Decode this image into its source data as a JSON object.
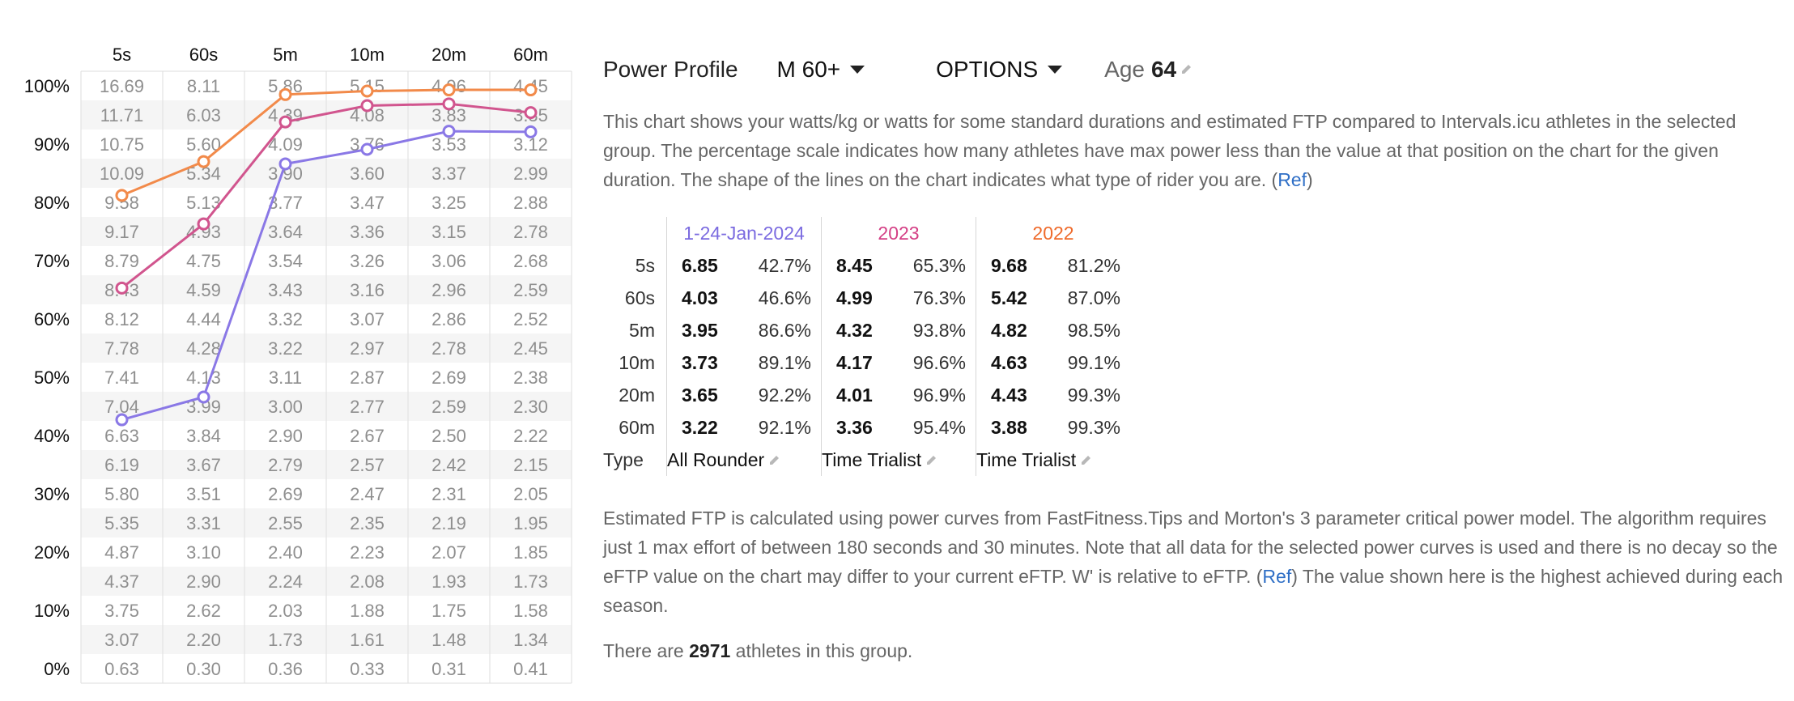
{
  "power_chart": {
    "columns": [
      "5s",
      "60s",
      "5m",
      "10m",
      "20m",
      "60m"
    ],
    "percent_labels": [
      "100%",
      "90%",
      "80%",
      "70%",
      "60%",
      "50%",
      "40%",
      "30%",
      "20%",
      "10%",
      "0%"
    ],
    "grid_values": [
      [
        "16.69",
        "8.11",
        "5.86",
        "5.15",
        "4.96",
        "4.45"
      ],
      [
        "11.71",
        "6.03",
        "4.39",
        "4.08",
        "3.83",
        "3.35"
      ],
      [
        "10.75",
        "5.60",
        "4.09",
        "3.76",
        "3.53",
        "3.12"
      ],
      [
        "10.09",
        "5.34",
        "3.90",
        "3.60",
        "3.37",
        "2.99"
      ],
      [
        "9.58",
        "5.13",
        "3.77",
        "3.47",
        "3.25",
        "2.88"
      ],
      [
        "9.17",
        "4.93",
        "3.64",
        "3.36",
        "3.15",
        "2.78"
      ],
      [
        "8.79",
        "4.75",
        "3.54",
        "3.26",
        "3.06",
        "2.68"
      ],
      [
        "8.43",
        "4.59",
        "3.43",
        "3.16",
        "2.96",
        "2.59"
      ],
      [
        "8.12",
        "4.44",
        "3.32",
        "3.07",
        "2.86",
        "2.52"
      ],
      [
        "7.78",
        "4.28",
        "3.22",
        "2.97",
        "2.78",
        "2.45"
      ],
      [
        "7.41",
        "4.13",
        "3.11",
        "2.87",
        "2.69",
        "2.38"
      ],
      [
        "7.04",
        "3.99",
        "3.00",
        "2.77",
        "2.59",
        "2.30"
      ],
      [
        "6.63",
        "3.84",
        "2.90",
        "2.67",
        "2.50",
        "2.22"
      ],
      [
        "6.19",
        "3.67",
        "2.79",
        "2.57",
        "2.42",
        "2.15"
      ],
      [
        "5.80",
        "3.51",
        "2.69",
        "2.47",
        "2.31",
        "2.05"
      ],
      [
        "5.35",
        "3.31",
        "2.55",
        "2.35",
        "2.19",
        "1.95"
      ],
      [
        "4.87",
        "3.10",
        "2.40",
        "2.23",
        "2.07",
        "1.85"
      ],
      [
        "4.37",
        "2.90",
        "2.24",
        "2.08",
        "1.93",
        "1.73"
      ],
      [
        "3.75",
        "2.62",
        "2.03",
        "1.88",
        "1.75",
        "1.58"
      ],
      [
        "3.07",
        "2.20",
        "1.73",
        "1.61",
        "1.48",
        "1.34"
      ],
      [
        "0.63",
        "0.30",
        "0.36",
        "0.33",
        "0.31",
        "0.41"
      ]
    ]
  },
  "chart_data": {
    "type": "line",
    "x": [
      "5s",
      "60s",
      "5m",
      "10m",
      "20m",
      "60m"
    ],
    "ylim": [
      0,
      100
    ],
    "y_tick_labels": [
      "0%",
      "10%",
      "20%",
      "30%",
      "40%",
      "50%",
      "60%",
      "70%",
      "80%",
      "90%",
      "100%"
    ],
    "series": [
      {
        "name": "1-24-Jan-2024",
        "color": "#8a78e6",
        "values": [
          42.7,
          46.6,
          86.6,
          89.1,
          92.2,
          92.1
        ]
      },
      {
        "name": "2023",
        "color": "#d1558e",
        "values": [
          65.3,
          76.3,
          93.8,
          96.6,
          96.9,
          95.4
        ]
      },
      {
        "name": "2022",
        "color": "#f28a4a",
        "values": [
          81.2,
          87.0,
          98.5,
          99.1,
          99.3,
          99.3
        ]
      }
    ]
  },
  "header": {
    "title": "Power Profile",
    "group_dropdown": "M 60+",
    "options_dropdown": "OPTIONS",
    "age_label": "Age",
    "age_value": "64"
  },
  "intro": {
    "text": "This chart shows your watts/kg or watts for some standard durations and estimated FTP compared to Intervals.icu athletes in the selected group. The percentage scale indicates how many athletes have max power less than the value at that position on the chart for the given duration. The shape of the lines on the chart indicates what type of rider you are. (",
    "ref_label": "Ref",
    "close": ")"
  },
  "seasons_table": {
    "durations": [
      "5s",
      "60s",
      "5m",
      "10m",
      "20m",
      "60m"
    ],
    "type_label": "Type",
    "seasons": [
      {
        "name": "1-24-Jan-2024",
        "color": "#7b6be0",
        "values": [
          "6.85",
          "4.03",
          "3.95",
          "3.73",
          "3.65",
          "3.22"
        ],
        "percents": [
          "42.7%",
          "46.6%",
          "86.6%",
          "89.1%",
          "92.2%",
          "92.1%"
        ],
        "type": "All Rounder"
      },
      {
        "name": "2023",
        "color": "#d43f85",
        "values": [
          "8.45",
          "4.99",
          "4.32",
          "4.17",
          "4.01",
          "3.36"
        ],
        "percents": [
          "65.3%",
          "76.3%",
          "93.8%",
          "96.6%",
          "96.9%",
          "95.4%"
        ],
        "type": "Time Trialist"
      },
      {
        "name": "2022",
        "color": "#ef6a2a",
        "values": [
          "9.68",
          "5.42",
          "4.82",
          "4.63",
          "4.43",
          "3.88"
        ],
        "percents": [
          "81.2%",
          "87.0%",
          "98.5%",
          "99.1%",
          "99.3%",
          "99.3%"
        ],
        "type": "Time Trialist"
      }
    ]
  },
  "ftp_note": {
    "text1": "Estimated FTP is calculated using power curves from FastFitness.Tips and Morton's 3 parameter critical power model. The algorithm requires just 1 max effort of between 180 seconds and 30 minutes. Note that all data for the selected power curves is used and there is no decay so the eFTP value on the chart may differ to your current eFTP. W' is relative to eFTP. (",
    "ref_label": "Ref",
    "text2": ") The value shown here is the highest achieved during each season."
  },
  "athletes": {
    "prefix": "There are",
    "count": "2971",
    "suffix": "athletes in this group."
  }
}
